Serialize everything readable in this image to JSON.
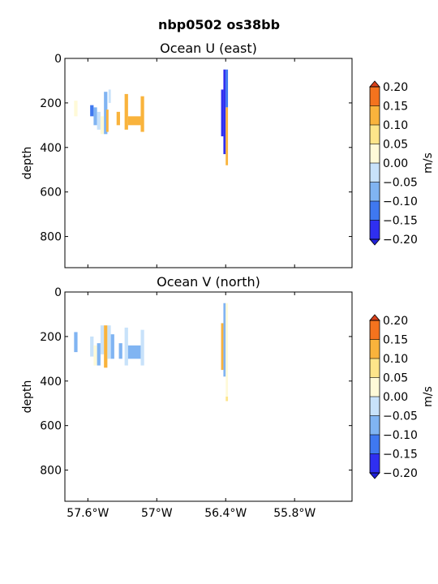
{
  "figure": {
    "suptitle": "nbp0502 os38bb"
  },
  "chart_data": [
    {
      "type": "heatmap",
      "title": "Ocean U (east)",
      "xlabel": "",
      "ylabel": "depth",
      "xlim": [
        -57.8,
        -55.3
      ],
      "ylim": [
        940,
        0
      ],
      "xtick_values": [
        -57.6,
        -57.0,
        -56.4,
        -55.8
      ],
      "xtick_labels": [
        "57.6°W",
        "57°W",
        "56.4°W",
        "55.8°W"
      ],
      "ytick_values": [
        0,
        200,
        400,
        600,
        800
      ],
      "ytick_labels": [
        "0",
        "200",
        "400",
        "600",
        "800"
      ],
      "colorbar": {
        "label": "m/s",
        "levels": [
          -0.2,
          -0.15,
          -0.1,
          -0.05,
          0.0,
          0.05,
          0.1,
          0.15,
          0.2
        ],
        "tick_labels": [
          "−0.20",
          "−0.15",
          "−0.10",
          "−0.05",
          "0.00",
          "0.05",
          "0.10",
          "0.15",
          "0.20"
        ],
        "colors": [
          "#2f2ff0",
          "#3f78f0",
          "#80b4f2",
          "#c8e2fa",
          "#fffad8",
          "#fde58a",
          "#f9b33c",
          "#f4731e"
        ]
      },
      "cells": [
        {
          "x": [
            -57.72,
            -57.69
          ],
          "y": [
            190,
            260
          ],
          "v": 0.02
        },
        {
          "x": [
            -57.58,
            -57.55
          ],
          "y": [
            210,
            260
          ],
          "v": -0.12
        },
        {
          "x": [
            -57.55,
            -57.52
          ],
          "y": [
            220,
            300
          ],
          "v": -0.08
        },
        {
          "x": [
            -57.52,
            -57.49
          ],
          "y": [
            240,
            320
          ],
          "v": -0.03
        },
        {
          "x": [
            -57.49,
            -57.46
          ],
          "y": [
            260,
            340
          ],
          "v": 0.02
        },
        {
          "x": [
            -57.46,
            -57.43
          ],
          "y": [
            150,
            340
          ],
          "v": -0.06
        },
        {
          "x": [
            -57.44,
            -57.42
          ],
          "y": [
            230,
            330
          ],
          "v": 0.11
        },
        {
          "x": [
            -57.42,
            -57.4
          ],
          "y": [
            140,
            200
          ],
          "v": -0.03
        },
        {
          "x": [
            -57.35,
            -57.32
          ],
          "y": [
            240,
            300
          ],
          "v": 0.12
        },
        {
          "x": [
            -57.28,
            -57.25
          ],
          "y": [
            160,
            320
          ],
          "v": 0.13
        },
        {
          "x": [
            -57.25,
            -57.14
          ],
          "y": [
            260,
            300
          ],
          "v": 0.14
        },
        {
          "x": [
            -57.14,
            -57.11
          ],
          "y": [
            170,
            330
          ],
          "v": 0.13
        },
        {
          "x": [
            -56.44,
            -56.42
          ],
          "y": [
            140,
            350
          ],
          "v": -0.16
        },
        {
          "x": [
            -56.42,
            -56.4
          ],
          "y": [
            50,
            430
          ],
          "v": -0.18
        },
        {
          "x": [
            -56.4,
            -56.38
          ],
          "y": [
            50,
            220
          ],
          "v": -0.14
        },
        {
          "x": [
            -56.4,
            -56.38
          ],
          "y": [
            220,
            480
          ],
          "v": 0.14
        }
      ]
    },
    {
      "type": "heatmap",
      "title": "Ocean V (north)",
      "xlabel": "",
      "ylabel": "depth",
      "xlim": [
        -57.8,
        -55.3
      ],
      "ylim": [
        940,
        0
      ],
      "xtick_values": [
        -57.6,
        -57.0,
        -56.4,
        -55.8
      ],
      "xtick_labels": [
        "57.6°W",
        "57°W",
        "56.4°W",
        "55.8°W"
      ],
      "ytick_values": [
        0,
        200,
        400,
        600,
        800
      ],
      "ytick_labels": [
        "0",
        "200",
        "400",
        "600",
        "800"
      ],
      "colorbar": {
        "label": "m/s",
        "levels": [
          -0.2,
          -0.15,
          -0.1,
          -0.05,
          0.0,
          0.05,
          0.1,
          0.15,
          0.2
        ],
        "tick_labels": [
          "−0.20",
          "−0.15",
          "−0.10",
          "−0.05",
          "0.00",
          "0.05",
          "0.10",
          "0.15",
          "0.20"
        ],
        "colors": [
          "#2f2ff0",
          "#3f78f0",
          "#80b4f2",
          "#c8e2fa",
          "#fffad8",
          "#fde58a",
          "#f9b33c",
          "#f4731e"
        ]
      },
      "cells": [
        {
          "x": [
            -57.72,
            -57.69
          ],
          "y": [
            180,
            270
          ],
          "v": -0.06
        },
        {
          "x": [
            -57.58,
            -57.55
          ],
          "y": [
            200,
            290
          ],
          "v": -0.03
        },
        {
          "x": [
            -57.55,
            -57.52
          ],
          "y": [
            240,
            330
          ],
          "v": 0.02
        },
        {
          "x": [
            -57.52,
            -57.49
          ],
          "y": [
            230,
            330
          ],
          "v": -0.06
        },
        {
          "x": [
            -57.49,
            -57.46
          ],
          "y": [
            150,
            280
          ],
          "v": -0.03
        },
        {
          "x": [
            -57.46,
            -57.43
          ],
          "y": [
            150,
            340
          ],
          "v": 0.12
        },
        {
          "x": [
            -57.43,
            -57.4
          ],
          "y": [
            150,
            300
          ],
          "v": -0.04
        },
        {
          "x": [
            -57.4,
            -57.37
          ],
          "y": [
            190,
            300
          ],
          "v": -0.07
        },
        {
          "x": [
            -57.33,
            -57.3
          ],
          "y": [
            230,
            300
          ],
          "v": -0.06
        },
        {
          "x": [
            -57.28,
            -57.25
          ],
          "y": [
            160,
            330
          ],
          "v": -0.03
        },
        {
          "x": [
            -57.25,
            -57.14
          ],
          "y": [
            240,
            300
          ],
          "v": -0.08
        },
        {
          "x": [
            -57.14,
            -57.11
          ],
          "y": [
            170,
            330
          ],
          "v": -0.02
        },
        {
          "x": [
            -56.44,
            -56.42
          ],
          "y": [
            140,
            350
          ],
          "v": 0.12
        },
        {
          "x": [
            -56.42,
            -56.4
          ],
          "y": [
            50,
            380
          ],
          "v": -0.06
        },
        {
          "x": [
            -56.4,
            -56.38
          ],
          "y": [
            50,
            470
          ],
          "v": 0.02
        },
        {
          "x": [
            -56.4,
            -56.38
          ],
          "y": [
            470,
            490
          ],
          "v": 0.09
        }
      ]
    }
  ]
}
